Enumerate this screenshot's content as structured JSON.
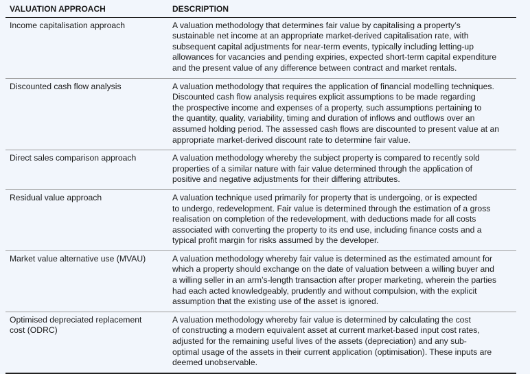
{
  "table": {
    "headers": [
      "VALUATION APPROACH",
      "DESCRIPTION"
    ],
    "rows": [
      {
        "approach": "Income capitalisation approach",
        "description": "A valuation methodology that determines fair value by capitalising a property’s\nsustainable net income at an appropriate market-derived capitalisation rate, with\nsubsequent capital adjustments for near-term events, typically including letting-up\nallowances for vacancies and pending expiries, expected short-term capital expenditure\nand the present value of any difference between contract and market rentals."
      },
      {
        "approach": "Discounted cash flow analysis",
        "description": "A valuation methodology that requires the application of financial modelling techniques.\nDiscounted cash flow analysis requires explicit assumptions to be made regarding\nthe prospective income and expenses of a property, such assumptions pertaining to\nthe quantity, quality, variability, timing and duration of inflows and outflows over an\nassumed holding period. The assessed cash flows are discounted to present value at an\nappropriate market-derived discount rate to determine fair value."
      },
      {
        "approach": "Direct sales comparison approach",
        "description": "A valuation methodology whereby the subject property is compared to recently sold\nproperties of a similar nature with fair value determined through the application of\npositive and negative adjustments for their differing attributes."
      },
      {
        "approach": "Residual value approach",
        "description": "A valuation technique used primarily for property that is undergoing, or is expected\nto undergo, redevelopment. Fair value is determined through the estimation of a gross\nrealisation on completion of the redevelopment, with deductions made for all costs\nassociated with converting the property to its end use, including finance costs and a\ntypical profit margin for risks assumed by the developer."
      },
      {
        "approach": "Market value alternative use (MVAU)",
        "description": "A valuation methodology whereby fair value is determined as the estimated amount for\nwhich a property should exchange on the date of valuation between a willing buyer and\na willing seller in an arm’s-length transaction after proper marketing, wherein the parties\nhad each acted knowledgeably, prudently and without compulsion, with the explicit\nassumption that the existing use of the asset is ignored."
      },
      {
        "approach": "Optimised depreciated replacement\ncost (ODRC)",
        "description": "A valuation methodology whereby fair value is determined by calculating the cost\nof constructing a modern equivalent asset at current market-based input cost rates,\nadjusted for the remaining useful lives of the assets (depreciation) and any sub-\noptimal usage of the assets in their current application (optimisation). These inputs are\ndeemed unobservable."
      }
    ]
  }
}
